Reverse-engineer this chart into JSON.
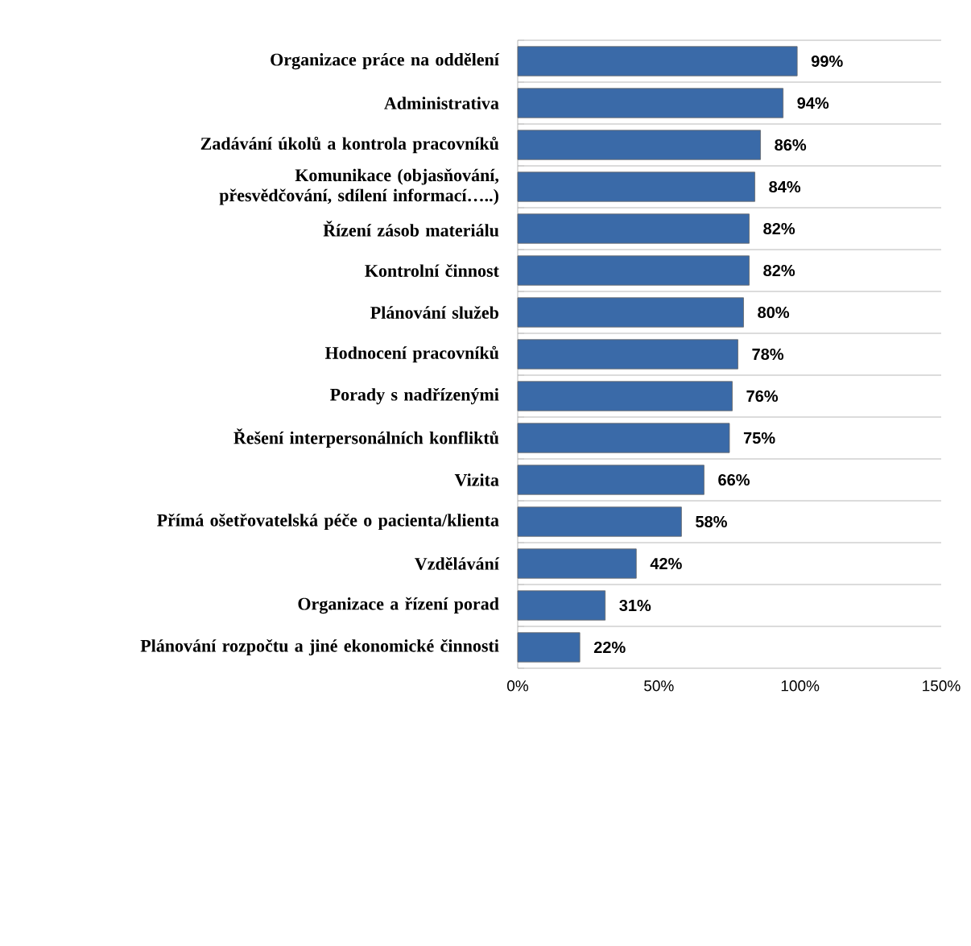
{
  "chart_data": {
    "type": "bar",
    "orientation": "horizontal",
    "categories": [
      "Organizace práce na oddělení",
      "Administrativa",
      "Zadávání úkolů a kontrola pracovníků",
      "Komunikace (objasňování, přesvědčování, sdílení informací…..)",
      "Řízení zásob materiálu",
      "Kontrolní činnost",
      "Plánování služeb",
      "Hodnocení pracovníků",
      "Porady s nadřízenými",
      "Řešení interpersonálních konfliktů",
      "Vizita",
      "Přímá ošetřovatelská péče o pacienta/klienta",
      "Vzdělávání",
      "Organizace a řízení porad",
      "Plánování rozpočtu a jiné ekonomické činnosti"
    ],
    "values": [
      99,
      94,
      86,
      84,
      82,
      82,
      80,
      78,
      76,
      75,
      66,
      58,
      42,
      31,
      22
    ],
    "value_labels": [
      "99%",
      "94%",
      "86%",
      "84%",
      "82%",
      "82%",
      "80%",
      "78%",
      "76%",
      "75%",
      "66%",
      "58%",
      "42%",
      "31%",
      "22%"
    ],
    "color": "#3a6aa8",
    "xlim": [
      0,
      150
    ],
    "xticks": [
      {
        "value": 0,
        "label": "0%"
      },
      {
        "value": 50,
        "label": "50%"
      },
      {
        "value": 100,
        "label": "100%"
      },
      {
        "value": 150,
        "label": "150%"
      }
    ],
    "grid": "y"
  }
}
